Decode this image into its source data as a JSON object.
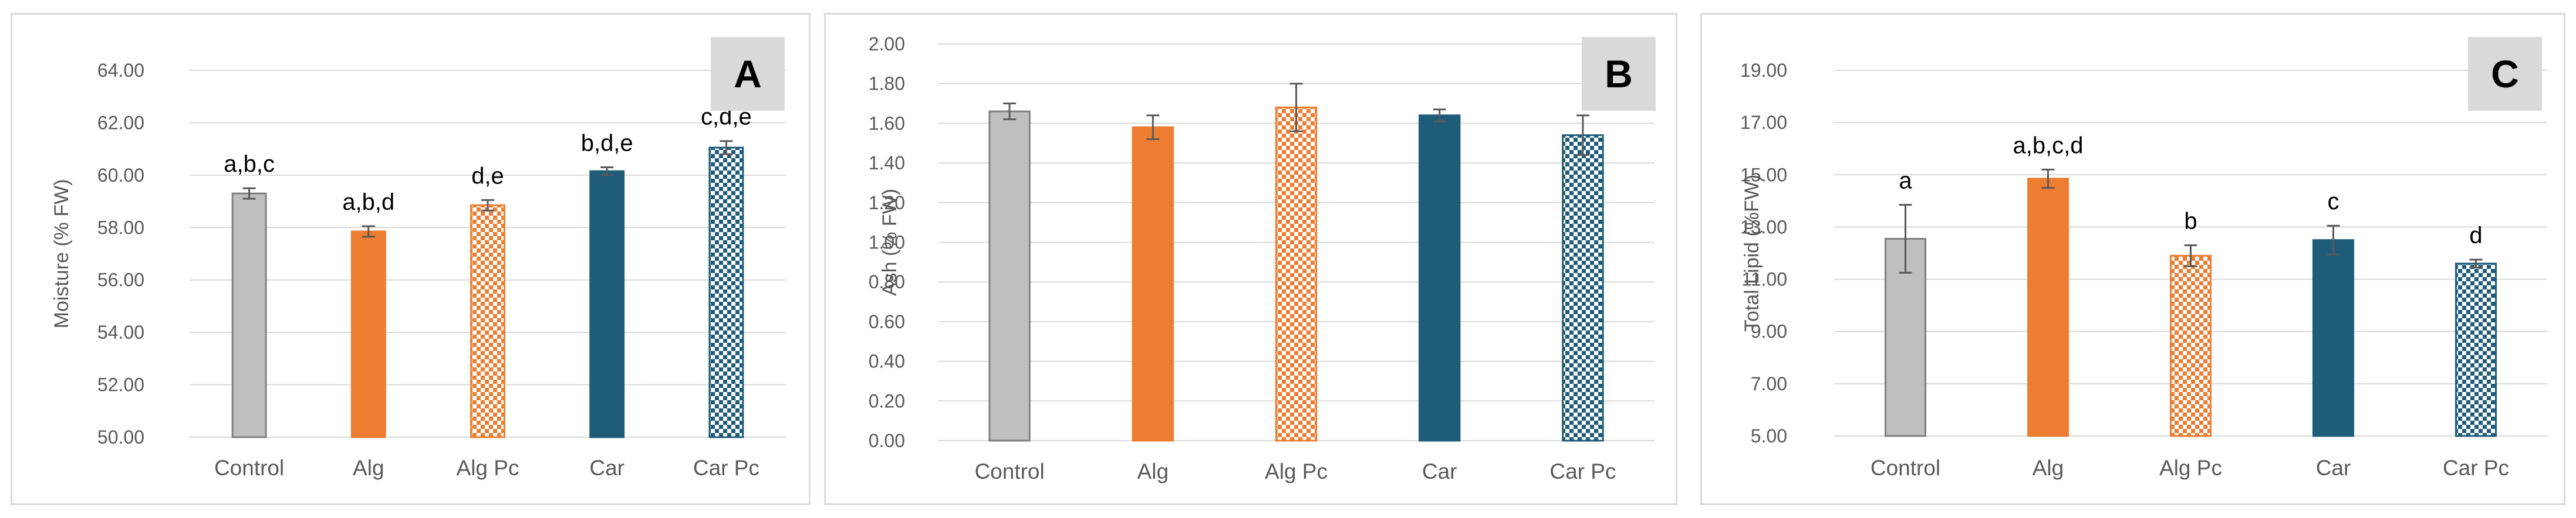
{
  "chart_data": [
    {
      "type": "bar",
      "panel_label": "A",
      "ylabel": "Moisture (% FW)",
      "categories": [
        "Control",
        "Alg",
        "Alg Pc",
        "Car",
        "Car Pc"
      ],
      "values": [
        59.3,
        57.85,
        58.85,
        60.15,
        61.05
      ],
      "errors": [
        0.2,
        0.2,
        0.2,
        0.15,
        0.25
      ],
      "labels": [
        "a,b,c",
        "a,b,d",
        "d,e",
        "b,d,e",
        "c,d,e"
      ],
      "ylim": [
        50,
        64
      ],
      "yticks": [
        "50.00",
        "52.00",
        "54.00",
        "56.00",
        "58.00",
        "60.00",
        "62.00",
        "64.00"
      ],
      "ytick_values": [
        50,
        52,
        54,
        56,
        58,
        60,
        62,
        64
      ],
      "grid": true
    },
    {
      "type": "bar",
      "panel_label": "B",
      "ylabel": "Ash (% FW)",
      "categories": [
        "Control",
        "Alg",
        "Alg Pc",
        "Car",
        "Car Pc"
      ],
      "values": [
        1.66,
        1.58,
        1.68,
        1.64,
        1.54
      ],
      "errors": [
        0.04,
        0.06,
        0.12,
        0.03,
        0.1
      ],
      "labels": [
        "",
        "",
        "",
        "",
        ""
      ],
      "ylim": [
        0,
        2
      ],
      "yticks": [
        "0.00",
        "0.20",
        "0.40",
        "0.60",
        "0.80",
        "1.00",
        "1.20",
        "1.40",
        "1.60",
        "1.80",
        "2.00"
      ],
      "ytick_values": [
        0,
        0.2,
        0.4,
        0.6,
        0.8,
        1.0,
        1.2,
        1.4,
        1.6,
        1.8,
        2.0
      ],
      "grid": true
    },
    {
      "type": "bar",
      "panel_label": "C",
      "ylabel": "Total Lipid (%FW)",
      "categories": [
        "Control",
        "Alg",
        "Alg Pc",
        "Car",
        "Car Pc"
      ],
      "values": [
        12.55,
        14.85,
        11.9,
        12.5,
        11.6
      ],
      "errors": [
        1.3,
        0.35,
        0.4,
        0.55,
        0.15
      ],
      "labels": [
        "a",
        "a,b,c,d",
        "b",
        "c",
        "d"
      ],
      "ylim": [
        5,
        19
      ],
      "yticks": [
        "5.00",
        "7.00",
        "9.00",
        "11.00",
        "13.00",
        "15.00",
        "17.00",
        "19.00"
      ],
      "ytick_values": [
        5,
        7,
        9,
        11,
        13,
        15,
        17,
        19
      ],
      "grid": true
    }
  ],
  "colors": {
    "Control": "#bfbfbf",
    "Alg": "#ed7d31",
    "Car": "#1f5c7a",
    "gridline": "#d9d9d9",
    "axis_text": "#595959",
    "label_box": "#d9d9d9"
  },
  "fills": [
    "solid",
    "solid",
    "checker",
    "solid",
    "checker"
  ]
}
